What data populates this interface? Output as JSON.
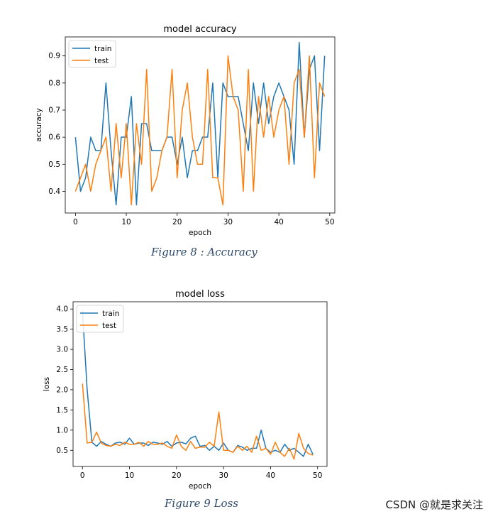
{
  "chart_data": [
    {
      "type": "line",
      "title": "model accuracy",
      "xlabel": "epoch",
      "ylabel": "accuracy",
      "xlim": [
        -2,
        51
      ],
      "ylim": [
        0.32,
        0.97
      ],
      "xticks": [
        0,
        10,
        20,
        30,
        40,
        50
      ],
      "yticks": [
        0.4,
        0.5,
        0.6,
        0.7,
        0.8,
        0.9
      ],
      "ytick_format": 1,
      "legend_loc": "upper-left",
      "series": [
        {
          "name": "train",
          "color": "#1f77b4",
          "values": [
            0.6,
            0.4,
            0.45,
            0.6,
            0.55,
            0.55,
            0.8,
            0.55,
            0.35,
            0.6,
            0.6,
            0.75,
            0.35,
            0.65,
            0.65,
            0.55,
            0.55,
            0.55,
            0.6,
            0.6,
            0.5,
            0.6,
            0.45,
            0.55,
            0.55,
            0.6,
            0.6,
            0.8,
            0.45,
            0.8,
            0.75,
            0.75,
            0.75,
            0.65,
            0.55,
            0.8,
            0.65,
            0.8,
            0.65,
            0.75,
            0.8,
            0.75,
            0.7,
            0.5,
            0.95,
            0.6,
            0.85,
            0.9,
            0.55,
            0.9
          ]
        },
        {
          "name": "test",
          "color": "#ff7f0e",
          "values": [
            0.4,
            0.45,
            0.5,
            0.4,
            0.5,
            0.55,
            0.6,
            0.4,
            0.65,
            0.45,
            0.65,
            0.35,
            0.65,
            0.5,
            0.85,
            0.4,
            0.45,
            0.55,
            0.6,
            0.85,
            0.45,
            0.7,
            0.8,
            0.6,
            0.5,
            0.5,
            0.85,
            0.45,
            0.45,
            0.35,
            0.9,
            0.75,
            0.7,
            0.4,
            0.85,
            0.4,
            0.75,
            0.6,
            0.75,
            0.6,
            0.7,
            0.75,
            0.5,
            0.8,
            0.85,
            0.6,
            0.9,
            0.45,
            0.8,
            0.75
          ]
        }
      ]
    },
    {
      "type": "line",
      "title": "model loss",
      "xlabel": "epoch",
      "ylabel": "loss",
      "xlim": [
        -2,
        52
      ],
      "ylim": [
        0.1,
        4.18
      ],
      "xticks": [
        0,
        10,
        20,
        30,
        40,
        50
      ],
      "yticks": [
        0.5,
        1.0,
        1.5,
        2.0,
        2.5,
        3.0,
        3.5,
        4.0
      ],
      "ytick_format": 1,
      "legend_loc": "upper-left",
      "series": [
        {
          "name": "train",
          "color": "#1f77b4",
          "values": [
            3.95,
            2.0,
            0.7,
            0.6,
            0.72,
            0.65,
            0.6,
            0.68,
            0.7,
            0.65,
            0.8,
            0.65,
            0.68,
            0.68,
            0.62,
            0.7,
            0.68,
            0.65,
            0.72,
            0.6,
            0.68,
            0.7,
            0.66,
            0.8,
            0.85,
            0.6,
            0.62,
            0.5,
            0.6,
            0.5,
            0.68,
            0.5,
            0.45,
            0.62,
            0.58,
            0.5,
            0.55,
            0.55,
            1.0,
            0.55,
            0.45,
            0.5,
            0.45,
            0.65,
            0.5,
            0.55,
            0.45,
            0.35,
            0.65,
            0.4
          ]
        },
        {
          "name": "test",
          "color": "#ff7f0e",
          "values": [
            2.15,
            0.68,
            0.7,
            0.95,
            0.68,
            0.62,
            0.6,
            0.65,
            0.62,
            0.7,
            0.65,
            0.65,
            0.7,
            0.6,
            0.72,
            0.65,
            0.65,
            0.68,
            0.6,
            0.55,
            0.88,
            0.6,
            0.5,
            0.72,
            0.55,
            0.58,
            0.58,
            0.7,
            0.6,
            1.45,
            0.5,
            0.5,
            0.45,
            0.6,
            0.5,
            0.6,
            0.45,
            0.85,
            0.5,
            0.55,
            0.4,
            0.7,
            0.45,
            0.35,
            0.55,
            0.28,
            0.92,
            0.55,
            0.42,
            0.38
          ]
        }
      ]
    }
  ],
  "captions": {
    "figure8": "Figure 8 : Accuracy",
    "figure9": "Figure 9 Loss"
  },
  "watermark": "CSDN @就是求关注"
}
